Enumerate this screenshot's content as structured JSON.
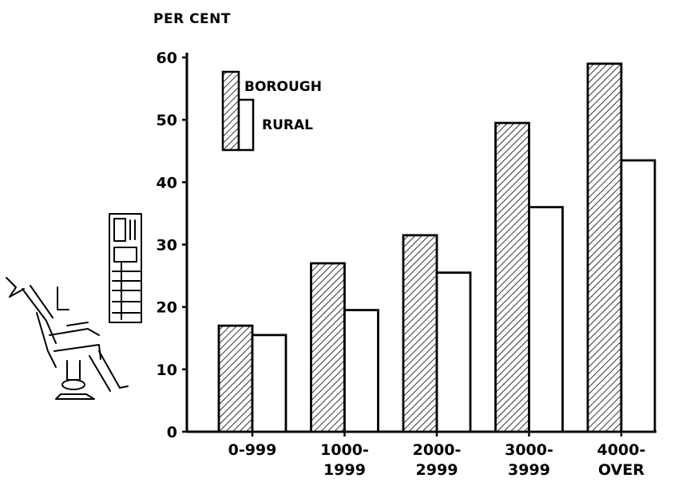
{
  "chart_data": {
    "type": "bar",
    "ylabel": "PER CENT",
    "xlabel": "",
    "ylim": [
      0,
      60
    ],
    "yticks": [
      0,
      10,
      20,
      30,
      40,
      50,
      60
    ],
    "categories": [
      [
        "0-999"
      ],
      [
        "1000-",
        "1999"
      ],
      [
        "2000-",
        "2999"
      ],
      [
        "3000-",
        "3999"
      ],
      [
        "4000-",
        "OVER"
      ]
    ],
    "series": [
      {
        "name": "BOROUGH",
        "values": [
          17,
          27,
          31.5,
          49.5,
          59
        ],
        "fill": "hatch"
      },
      {
        "name": "RURAL",
        "values": [
          15.5,
          19.5,
          25.5,
          36,
          43.5
        ],
        "fill": "#ffffff"
      }
    ],
    "legend_position": "top-left",
    "grid": false
  }
}
